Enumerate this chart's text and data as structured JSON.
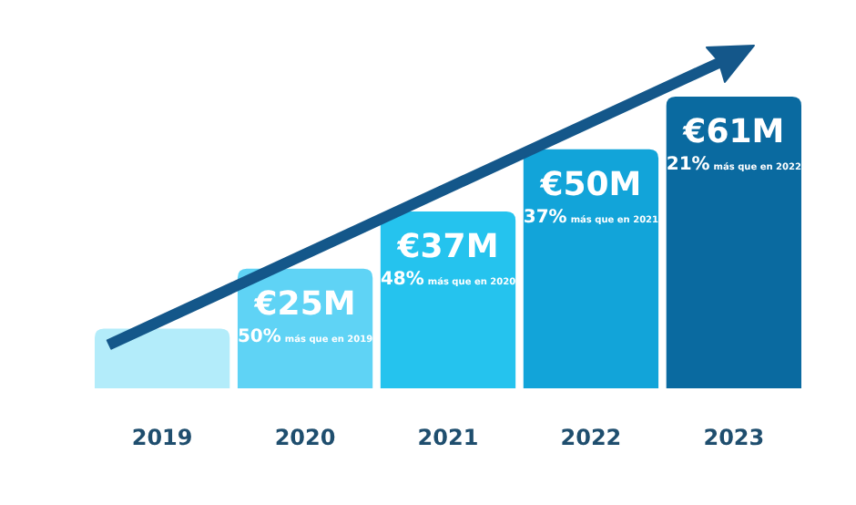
{
  "chart_data": {
    "type": "bar",
    "categories": [
      "2019",
      "2020",
      "2021",
      "2022",
      "2023"
    ],
    "values": [
      12.5,
      25,
      37,
      50,
      61
    ],
    "colors": [
      "#b3ecfa",
      "#5fd3f5",
      "#25c3ee",
      "#12a4d9",
      "#0a6aa0"
    ],
    "value_labels": [
      null,
      "€25M",
      "€37M",
      "€50M",
      "€61M"
    ],
    "annotations": [
      "50% más que en 2019",
      "48% más que en 2020",
      "37% más que en 2021",
      "21% más que en 2022"
    ]
  }
}
